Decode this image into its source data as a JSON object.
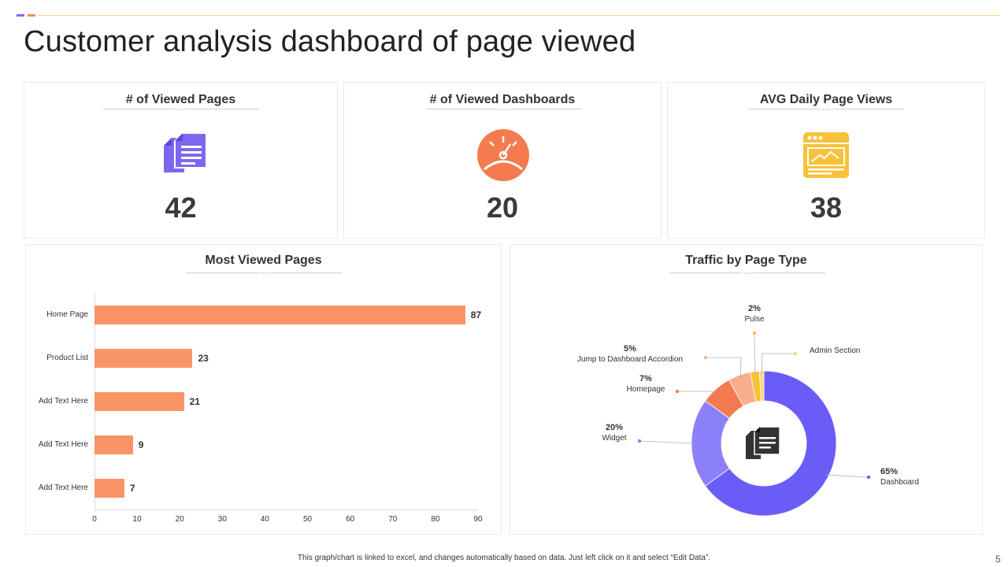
{
  "page": {
    "title": "Customer analysis dashboard of page viewed",
    "footer_note": "This graph/chart is linked to excel, and changes automatically based on data. Just left click on it and select “Edit Data”.",
    "page_number": "5"
  },
  "kpis": [
    {
      "title": "# of Viewed Pages",
      "value": "42",
      "icon": "documents-icon",
      "color": "#7b68ee"
    },
    {
      "title": "# of Viewed Dashboards",
      "value": "20",
      "icon": "speedometer-icon",
      "color": "#f47b4f"
    },
    {
      "title": "AVG Daily Page Views",
      "value": "38",
      "icon": "browser-window-icon",
      "color": "#f8c13a"
    }
  ],
  "charts": {
    "bar_title": "Most Viewed Pages",
    "pie_title": "Traffic by Page Type"
  },
  "chart_data": [
    {
      "type": "bar",
      "orientation": "horizontal",
      "title": "Most Viewed Pages",
      "categories": [
        "Home Page",
        "Product List",
        "Add Text Here",
        "Add Text Here",
        "Add Text Here"
      ],
      "values": [
        87,
        23,
        21,
        9,
        7
      ],
      "xlim": [
        0,
        90
      ],
      "xticks": [
        0,
        10,
        20,
        30,
        40,
        50,
        60,
        70,
        80,
        90
      ],
      "color": "#f99467"
    },
    {
      "type": "pie",
      "style": "donut",
      "title": "Traffic by Page Type",
      "slices": [
        {
          "name": "Dashboard",
          "value": 65,
          "label": "65%",
          "color": "#6a5cf6"
        },
        {
          "name": "Widget",
          "value": 20,
          "label": "20%",
          "color": "#8b80f9"
        },
        {
          "name": "Homepage",
          "value": 7,
          "label": "7%",
          "color": "#f47b4f"
        },
        {
          "name": "Jump to Dashboard Accordion",
          "value": 5,
          "label": "5%",
          "color": "#f9ae8c"
        },
        {
          "name": "Pulse",
          "value": 2,
          "label": "2%",
          "color": "#f8c13a"
        },
        {
          "name": "Admin Section",
          "value": 1,
          "label": "",
          "color": "#fcd77a"
        }
      ]
    }
  ]
}
